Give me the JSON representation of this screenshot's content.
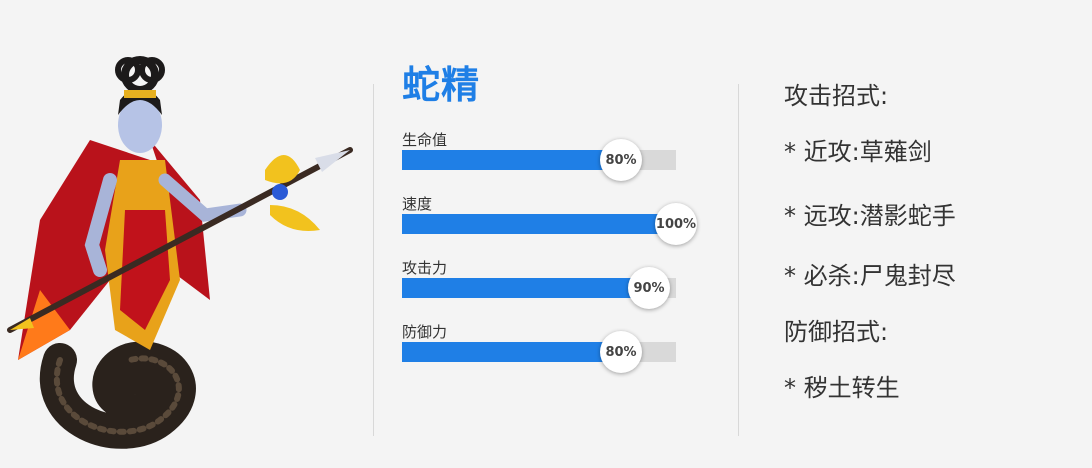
{
  "hero": {
    "name": "蛇精"
  },
  "stats": [
    {
      "label": "生命值",
      "percent_text": "80%",
      "value": 80
    },
    {
      "label": "速度",
      "percent_text": "100%",
      "value": 100
    },
    {
      "label": "攻击力",
      "percent_text": "90%",
      "value": 90
    },
    {
      "label": "防御力",
      "percent_text": "80%",
      "value": 80
    }
  ],
  "skills": {
    "attack_heading": "攻击招式:",
    "attack_items": [
      "* 近攻:草薙剑",
      "* 远攻:潜影蛇手",
      "* 必杀:尸鬼封尽"
    ],
    "defense_heading": "防御招式:",
    "defense_items": [
      "* 秽土转生"
    ]
  },
  "colors": {
    "accent": "#1f7fe6",
    "track": "#d9d9d9",
    "background": "#f4f4f4"
  },
  "icons": {
    "portrait": "snake-spirit-character-illustration"
  }
}
